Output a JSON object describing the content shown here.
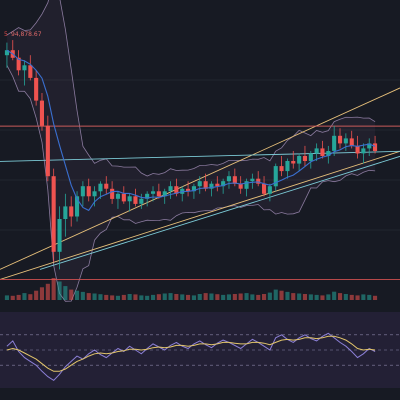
{
  "chart_data": [
    {
      "type": "candlestick",
      "price_label": "94,878.67",
      "price_label_prefix": "5",
      "ylim": [
        0,
        100
      ],
      "overlays": [
        "bollinger-bands",
        "moving-average"
      ],
      "volume": true,
      "colors": {
        "background": "#171a23",
        "up": "#26a69a",
        "down": "#ef5350",
        "ma": "#3a6fd0",
        "band": "#8a7a9e",
        "trend_orange": "#e7c07a",
        "trend_cyan": "#7ccad6",
        "support": "#d05050",
        "resistance": "#c85a5a"
      },
      "candles": [
        {
          "o": 90,
          "h": 95,
          "l": 85,
          "c": 92
        },
        {
          "o": 92,
          "h": 96,
          "l": 88,
          "c": 89
        },
        {
          "o": 89,
          "h": 92,
          "l": 82,
          "c": 84
        },
        {
          "o": 84,
          "h": 88,
          "l": 78,
          "c": 86
        },
        {
          "o": 86,
          "h": 90,
          "l": 80,
          "c": 81
        },
        {
          "o": 81,
          "h": 84,
          "l": 70,
          "c": 72
        },
        {
          "o": 72,
          "h": 75,
          "l": 60,
          "c": 62
        },
        {
          "o": 62,
          "h": 66,
          "l": 40,
          "c": 42
        },
        {
          "o": 42,
          "h": 45,
          "l": 8,
          "c": 12
        },
        {
          "o": 12,
          "h": 30,
          "l": 5,
          "c": 25
        },
        {
          "o": 25,
          "h": 35,
          "l": 18,
          "c": 30
        },
        {
          "o": 30,
          "h": 34,
          "l": 22,
          "c": 26
        },
        {
          "o": 26,
          "h": 36,
          "l": 24,
          "c": 34
        },
        {
          "o": 34,
          "h": 40,
          "l": 30,
          "c": 38
        },
        {
          "o": 38,
          "h": 41,
          "l": 32,
          "c": 34
        },
        {
          "o": 34,
          "h": 38,
          "l": 30,
          "c": 36
        },
        {
          "o": 36,
          "h": 40,
          "l": 33,
          "c": 39
        },
        {
          "o": 39,
          "h": 42,
          "l": 35,
          "c": 37
        },
        {
          "o": 37,
          "h": 40,
          "l": 31,
          "c": 33
        },
        {
          "o": 33,
          "h": 36,
          "l": 29,
          "c": 35
        },
        {
          "o": 35,
          "h": 38,
          "l": 31,
          "c": 32
        },
        {
          "o": 32,
          "h": 35,
          "l": 28,
          "c": 34
        },
        {
          "o": 34,
          "h": 37,
          "l": 30,
          "c": 31
        },
        {
          "o": 31,
          "h": 35,
          "l": 29,
          "c": 33
        },
        {
          "o": 33,
          "h": 36,
          "l": 30,
          "c": 35
        },
        {
          "o": 35,
          "h": 38,
          "l": 32,
          "c": 36
        },
        {
          "o": 36,
          "h": 39,
          "l": 33,
          "c": 34
        },
        {
          "o": 34,
          "h": 37,
          "l": 31,
          "c": 36
        },
        {
          "o": 36,
          "h": 40,
          "l": 33,
          "c": 38
        },
        {
          "o": 38,
          "h": 41,
          "l": 34,
          "c": 35
        },
        {
          "o": 35,
          "h": 38,
          "l": 32,
          "c": 37
        },
        {
          "o": 37,
          "h": 40,
          "l": 34,
          "c": 36
        },
        {
          "o": 36,
          "h": 39,
          "l": 33,
          "c": 38
        },
        {
          "o": 38,
          "h": 42,
          "l": 35,
          "c": 40
        },
        {
          "o": 40,
          "h": 43,
          "l": 36,
          "c": 37
        },
        {
          "o": 37,
          "h": 40,
          "l": 34,
          "c": 39
        },
        {
          "o": 39,
          "h": 42,
          "l": 36,
          "c": 38
        },
        {
          "o": 38,
          "h": 41,
          "l": 35,
          "c": 40
        },
        {
          "o": 40,
          "h": 44,
          "l": 37,
          "c": 42
        },
        {
          "o": 42,
          "h": 45,
          "l": 38,
          "c": 39
        },
        {
          "o": 39,
          "h": 42,
          "l": 35,
          "c": 37
        },
        {
          "o": 37,
          "h": 41,
          "l": 34,
          "c": 40
        },
        {
          "o": 40,
          "h": 43,
          "l": 37,
          "c": 41
        },
        {
          "o": 41,
          "h": 44,
          "l": 38,
          "c": 39
        },
        {
          "o": 39,
          "h": 42,
          "l": 34,
          "c": 35
        },
        {
          "o": 35,
          "h": 39,
          "l": 32,
          "c": 38
        },
        {
          "o": 38,
          "h": 47,
          "l": 36,
          "c": 46
        },
        {
          "o": 46,
          "h": 50,
          "l": 42,
          "c": 44
        },
        {
          "o": 44,
          "h": 49,
          "l": 41,
          "c": 48
        },
        {
          "o": 48,
          "h": 52,
          "l": 45,
          "c": 47
        },
        {
          "o": 47,
          "h": 51,
          "l": 44,
          "c": 50
        },
        {
          "o": 50,
          "h": 54,
          "l": 46,
          "c": 48
        },
        {
          "o": 48,
          "h": 52,
          "l": 45,
          "c": 51
        },
        {
          "o": 51,
          "h": 55,
          "l": 48,
          "c": 53
        },
        {
          "o": 53,
          "h": 56,
          "l": 49,
          "c": 50
        },
        {
          "o": 50,
          "h": 54,
          "l": 47,
          "c": 52
        },
        {
          "o": 52,
          "h": 62,
          "l": 50,
          "c": 58
        },
        {
          "o": 58,
          "h": 61,
          "l": 53,
          "c": 55
        },
        {
          "o": 55,
          "h": 59,
          "l": 52,
          "c": 57
        },
        {
          "o": 57,
          "h": 60,
          "l": 53,
          "c": 54
        },
        {
          "o": 54,
          "h": 58,
          "l": 49,
          "c": 51
        },
        {
          "o": 51,
          "h": 55,
          "l": 47,
          "c": 53
        },
        {
          "o": 53,
          "h": 57,
          "l": 50,
          "c": 55
        },
        {
          "o": 55,
          "h": 58,
          "l": 51,
          "c": 52
        }
      ],
      "volume_values": [
        20,
        18,
        22,
        30,
        25,
        40,
        55,
        70,
        95,
        80,
        60,
        45,
        40,
        35,
        30,
        28,
        25,
        22,
        20,
        18,
        22,
        26,
        24,
        20,
        18,
        22,
        25,
        28,
        30,
        26,
        24,
        22,
        20,
        26,
        30,
        28,
        25,
        22,
        24,
        26,
        28,
        30,
        24,
        22,
        26,
        32,
        45,
        40,
        35,
        30,
        28,
        26,
        24,
        22,
        20,
        24,
        36,
        30,
        26,
        22,
        20,
        24,
        22,
        18
      ]
    },
    {
      "type": "line",
      "subtype": "oscillator",
      "ylim": [
        0,
        100
      ],
      "levels": [
        70,
        50,
        30
      ],
      "series": [
        {
          "color": "#8b7fd6",
          "values": [
            55,
            62,
            48,
            40,
            35,
            30,
            22,
            15,
            10,
            18,
            28,
            35,
            42,
            38,
            45,
            50,
            44,
            40,
            46,
            52,
            48,
            55,
            50,
            45,
            52,
            58,
            54,
            50,
            56,
            60,
            55,
            52,
            58,
            62,
            57,
            53,
            59,
            63,
            60,
            56,
            52,
            58,
            64,
            60,
            55,
            50,
            66,
            70,
            64,
            60,
            66,
            70,
            65,
            62,
            68,
            72,
            66,
            60,
            55,
            48,
            40,
            45,
            52,
            48
          ]
        },
        {
          "color": "#e2c56b",
          "values": [
            50,
            52,
            50,
            46,
            42,
            38,
            32,
            26,
            22,
            22,
            25,
            30,
            35,
            38,
            42,
            45,
            46,
            45,
            46,
            48,
            49,
            51,
            51,
            50,
            51,
            53,
            54,
            53,
            54,
            56,
            56,
            55,
            56,
            58,
            58,
            57,
            58,
            60,
            60,
            59,
            58,
            58,
            60,
            60,
            59,
            57,
            60,
            63,
            64,
            63,
            64,
            66,
            66,
            65,
            66,
            68,
            68,
            66,
            63,
            58,
            52,
            50,
            51,
            50
          ]
        }
      ]
    }
  ],
  "toolbar": {
    "icons": [
      "cursor-icon",
      "trend-line-icon",
      "fib-icon",
      "brush-icon",
      "text-icon",
      "pattern-icon",
      "measure-icon",
      "emoji-icon",
      "ruler-icon",
      "zoom-icon",
      "magnet-icon",
      "lock-icon",
      "eye-icon",
      "trash-icon"
    ]
  }
}
